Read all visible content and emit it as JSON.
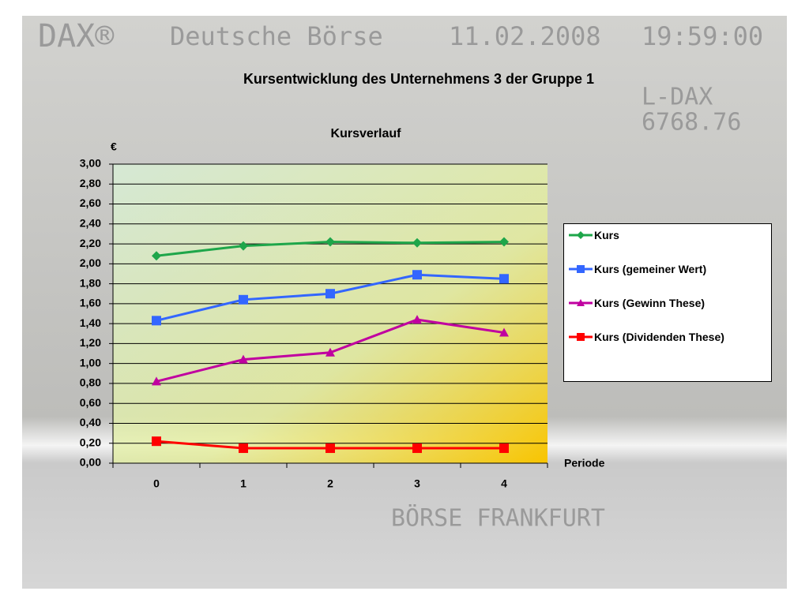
{
  "backdrop": {
    "texts": [
      "DAX®",
      "Deutsche Börse",
      "11.02.2008",
      "19:59:00",
      "L-DAX",
      "6768.76",
      "BÖRSE FRANKFURT"
    ]
  },
  "slide_title": "Kursentwicklung des Unternehmens 3 der Gruppe 1",
  "chart_data": {
    "type": "line",
    "title": "Kursverlauf",
    "y_label": "€",
    "x_label": "Periode",
    "categories": [
      "0",
      "1",
      "2",
      "3",
      "4"
    ],
    "series": [
      {
        "name": "Kurs",
        "color": "#1ea64a",
        "marker": "diamond",
        "values": [
          2.08,
          2.18,
          2.22,
          2.21,
          2.22
        ]
      },
      {
        "name": "Kurs (gemeiner Wert)",
        "color": "#3366ff",
        "marker": "square",
        "values": [
          1.43,
          1.64,
          1.7,
          1.89,
          1.85
        ]
      },
      {
        "name": "Kurs (Gewinn These)",
        "color": "#c000a0",
        "marker": "triangle",
        "values": [
          0.82,
          1.04,
          1.11,
          1.44,
          1.31
        ]
      },
      {
        "name": "Kurs (Dividenden These)",
        "color": "#ff0000",
        "marker": "square",
        "values": [
          0.22,
          0.15,
          0.15,
          0.15,
          0.15
        ]
      }
    ],
    "ylim": [
      0,
      3
    ],
    "yticks": [
      {
        "value": 0,
        "label": "0,00"
      },
      {
        "value": 0.2,
        "label": "0,20"
      },
      {
        "value": 0.4,
        "label": "0,40"
      },
      {
        "value": 0.6,
        "label": "0,60"
      },
      {
        "value": 0.8,
        "label": "0,80"
      },
      {
        "value": 1,
        "label": "1,00"
      },
      {
        "value": 1.2,
        "label": "1,20"
      },
      {
        "value": 1.4,
        "label": "1,40"
      },
      {
        "value": 1.6,
        "label": "1,60"
      },
      {
        "value": 1.8,
        "label": "1,80"
      },
      {
        "value": 2,
        "label": "2,00"
      },
      {
        "value": 2.2,
        "label": "2,20"
      },
      {
        "value": 2.4,
        "label": "2,40"
      },
      {
        "value": 2.6,
        "label": "2,60"
      },
      {
        "value": 2.8,
        "label": "2,80"
      },
      {
        "value": 3,
        "label": "3,00"
      }
    ],
    "grid": true,
    "legend": "right"
  }
}
